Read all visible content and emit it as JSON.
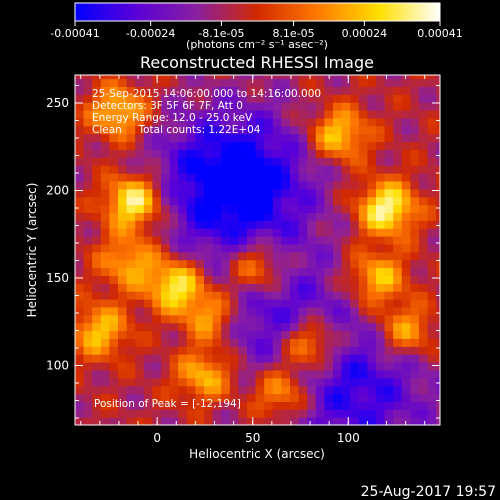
{
  "chart_data": {
    "type": "heatmap",
    "title": "Reconstructed RHESSI Image",
    "colorbar": {
      "range": [
        -0.00041,
        0.00041
      ],
      "tick_labels": [
        "-0.00041",
        "-0.00024",
        "-8.1e-05",
        "8.1e-05",
        "0.00024",
        "0.00041"
      ],
      "tick_values": [
        -0.00041,
        -0.00024,
        -8.1e-05,
        8.1e-05,
        0.00024,
        0.00041
      ],
      "unit_label": "(photons cm⁻² s⁻¹ asec⁻²)",
      "colors": [
        "#0000ff",
        "#5a00d8",
        "#8a1fa0",
        "#d22a00",
        "#ff7a00",
        "#ffe000",
        "#ffffff"
      ]
    },
    "info_lines": [
      "25-Sep-2015 14:06:00.000 to 14:16:00.000",
      "Detectors: 3F 5F 6F 7F, Att 0",
      "Energy Range: 12.0 - 25.0 keV",
      "Clean     Total counts: 1.22E+04"
    ],
    "peak_label": "Position of Peak = [-12,194]",
    "peak": [
      -12,
      194
    ],
    "xlabel": "Heliocentric X (arcsec)",
    "ylabel": "Heliocentric Y (arcsec)",
    "xlim": [
      -43,
      148
    ],
    "ylim": [
      66,
      266
    ],
    "xticks": [
      0,
      50,
      100
    ],
    "xtick_labels": [
      "0",
      "50",
      "100"
    ],
    "yticks": [
      100,
      150,
      200,
      250
    ],
    "ytick_labels": [
      "100",
      "150",
      "200",
      "250"
    ],
    "bright_sources": [
      {
        "x": -12,
        "y": 194,
        "intensity": 1.0
      },
      {
        "x": 120,
        "y": 190,
        "intensity": 0.95
      },
      {
        "x": 10,
        "y": 146,
        "intensity": 0.9
      },
      {
        "x": 80,
        "y": 112,
        "intensity": 0.9
      },
      {
        "x": 52,
        "y": 156,
        "intensity": 0.8
      },
      {
        "x": 95,
        "y": 232,
        "intensity": 0.75
      },
      {
        "x": -20,
        "y": 245,
        "intensity": 0.7
      },
      {
        "x": 28,
        "y": 128,
        "intensity": 0.7
      },
      {
        "x": 115,
        "y": 150,
        "intensity": 0.7
      },
      {
        "x": -30,
        "y": 120,
        "intensity": 0.65
      },
      {
        "x": 25,
        "y": 95,
        "intensity": 0.7
      },
      {
        "x": 65,
        "y": 85,
        "intensity": 0.75
      },
      {
        "x": 130,
        "y": 120,
        "intensity": 0.65
      },
      {
        "x": -15,
        "y": 160,
        "intensity": 0.6
      }
    ],
    "dim_regions": [
      {
        "x": 40,
        "y": 205,
        "intensity": -1.0
      },
      {
        "x": 105,
        "y": 85,
        "intensity": -0.6
      },
      {
        "x": 60,
        "y": 130,
        "intensity": -0.5
      }
    ]
  },
  "timestamp": "25-Aug-2017 19:57"
}
